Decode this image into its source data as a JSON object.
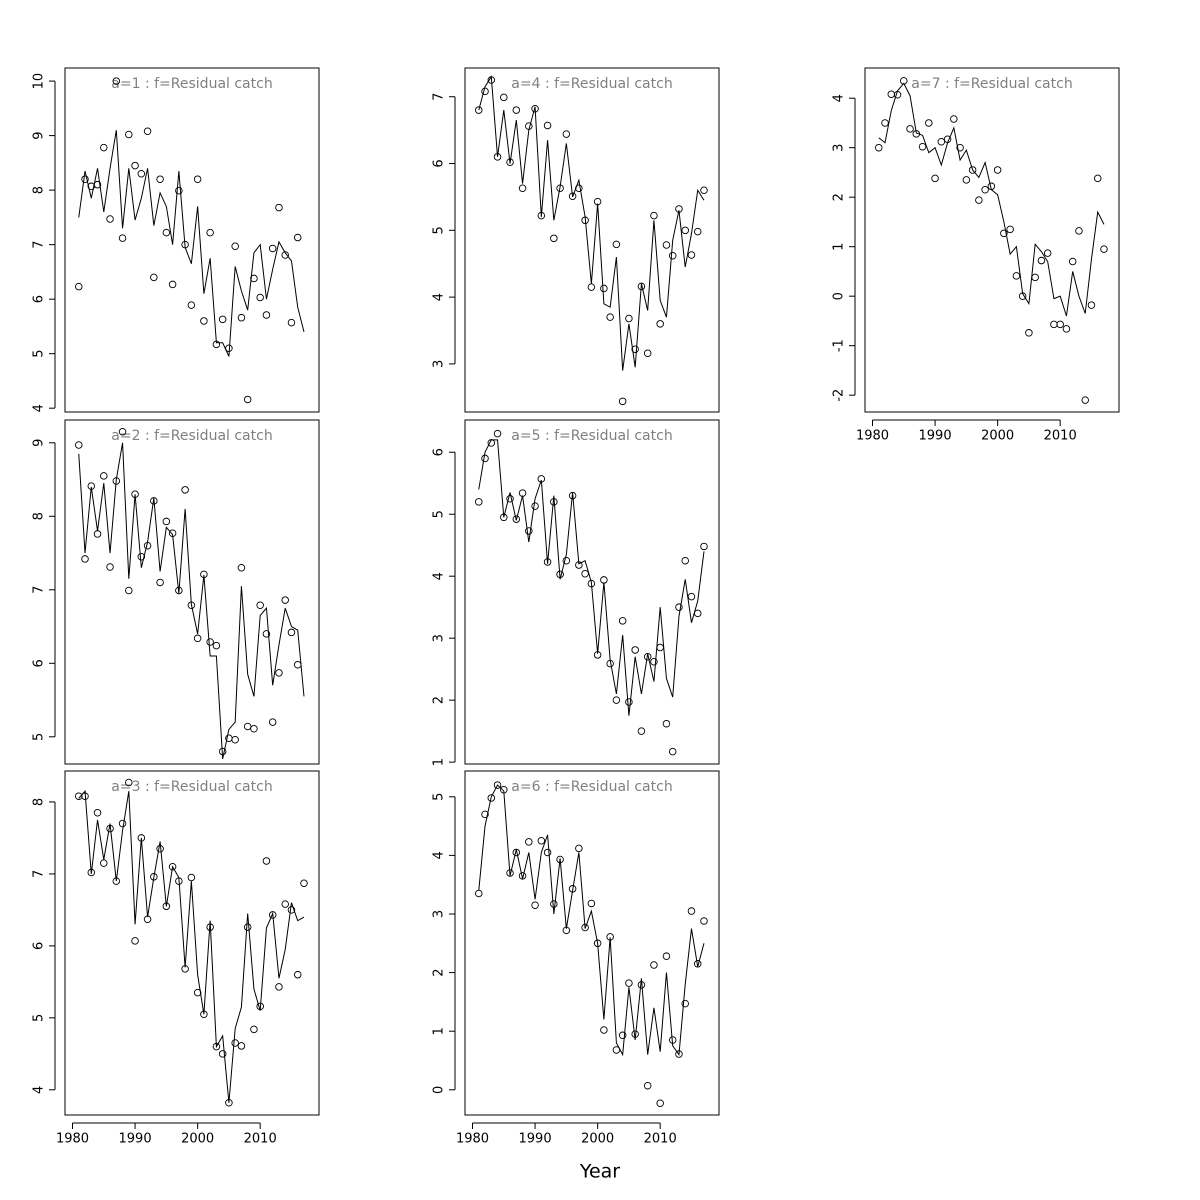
{
  "x_axis_label": "Year",
  "chart_data": [
    {
      "type": "line",
      "title": "a=1  :  f=Residual catch",
      "title_color": "#808080",
      "color": "#000000",
      "x": [
        1981,
        1982,
        1983,
        1984,
        1985,
        1986,
        1987,
        1988,
        1989,
        1990,
        1991,
        1992,
        1993,
        1994,
        1995,
        1996,
        1997,
        1998,
        1999,
        2000,
        2001,
        2002,
        2003,
        2004,
        2005,
        2006,
        2007,
        2008,
        2009,
        2010,
        2011,
        2012,
        2013,
        2014,
        2015,
        2016,
        2017
      ],
      "series": [
        {
          "style": "points",
          "values": [
            6.23,
            8.2,
            8.07,
            8.1,
            8.78,
            7.47,
            10.0,
            7.12,
            9.02,
            8.45,
            8.3,
            9.08,
            6.4,
            8.2,
            7.22,
            6.27,
            7.99,
            7.0,
            5.89,
            8.2,
            5.6,
            7.22,
            5.17,
            5.63,
            5.1,
            6.97,
            5.66,
            4.16,
            6.38,
            6.03,
            5.71,
            6.93,
            7.68,
            6.81,
            5.57,
            7.13,
            null
          ]
        },
        {
          "style": "line",
          "values": [
            7.5,
            8.35,
            7.85,
            8.4,
            7.6,
            8.4,
            9.1,
            7.3,
            8.4,
            7.45,
            7.85,
            8.4,
            7.35,
            7.95,
            7.7,
            7.0,
            8.35,
            6.95,
            6.65,
            7.7,
            6.1,
            6.75,
            5.2,
            5.2,
            4.95,
            6.6,
            6.15,
            5.8,
            6.85,
            7.0,
            6.0,
            6.55,
            7.05,
            6.85,
            6.7,
            5.85,
            5.4
          ]
        }
      ],
      "xlim": [
        1978.8,
        2019.4
      ],
      "ylim": [
        3.93,
        10.24
      ],
      "yticks": [
        4,
        5,
        6,
        7,
        8,
        9,
        10
      ]
    },
    {
      "type": "line",
      "title": "a=2  :  f=Residual catch",
      "title_color": "#808080",
      "color": "#000000",
      "x": [
        1981,
        1982,
        1983,
        1984,
        1985,
        1986,
        1987,
        1988,
        1989,
        1990,
        1991,
        1992,
        1993,
        1994,
        1995,
        1996,
        1997,
        1998,
        1999,
        2000,
        2001,
        2002,
        2003,
        2004,
        2005,
        2006,
        2007,
        2008,
        2009,
        2010,
        2011,
        2012,
        2013,
        2014,
        2015,
        2016,
        2017
      ],
      "series": [
        {
          "style": "points",
          "values": [
            8.97,
            7.42,
            8.41,
            7.76,
            8.55,
            7.31,
            8.48,
            9.15,
            6.99,
            8.3,
            7.45,
            7.6,
            8.21,
            7.1,
            7.93,
            7.77,
            6.99,
            8.36,
            6.79,
            6.34,
            7.21,
            6.29,
            6.24,
            4.8,
            4.98,
            4.96,
            7.3,
            5.14,
            5.11,
            6.79,
            6.4,
            5.2,
            5.87,
            6.86,
            6.42,
            5.98,
            null
          ]
        },
        {
          "style": "line",
          "values": [
            8.85,
            7.5,
            8.4,
            7.8,
            8.45,
            7.5,
            8.5,
            9.0,
            7.15,
            8.3,
            7.3,
            7.65,
            8.25,
            7.25,
            7.85,
            7.75,
            6.95,
            8.1,
            6.8,
            6.4,
            7.2,
            6.1,
            6.1,
            4.7,
            5.1,
            5.2,
            7.05,
            5.85,
            5.55,
            6.65,
            6.75,
            5.7,
            6.25,
            6.75,
            6.5,
            6.45,
            5.55
          ]
        }
      ],
      "xlim": [
        1978.8,
        2019.4
      ],
      "ylim": [
        4.63,
        9.31
      ],
      "yticks": [
        5,
        6,
        7,
        8,
        9
      ]
    },
    {
      "type": "line",
      "title": "a=3  :  f=Residual catch",
      "title_color": "#808080",
      "color": "#000000",
      "x": [
        1981,
        1982,
        1983,
        1984,
        1985,
        1986,
        1987,
        1988,
        1989,
        1990,
        1991,
        1992,
        1993,
        1994,
        1995,
        1996,
        1997,
        1998,
        1999,
        2000,
        2001,
        2002,
        2003,
        2004,
        2005,
        2006,
        2007,
        2008,
        2009,
        2010,
        2011,
        2012,
        2013,
        2014,
        2015,
        2016,
        2017
      ],
      "series": [
        {
          "style": "points",
          "values": [
            8.08,
            8.08,
            7.02,
            7.85,
            7.15,
            7.63,
            6.9,
            7.7,
            8.27,
            6.07,
            7.5,
            6.37,
            6.96,
            7.35,
            6.55,
            7.1,
            6.9,
            5.68,
            6.95,
            5.35,
            5.05,
            6.26,
            4.6,
            4.5,
            3.82,
            4.65,
            4.61,
            6.26,
            4.84,
            5.16,
            7.18,
            6.43,
            5.43,
            6.58,
            6.5,
            5.6,
            6.87
          ]
        },
        {
          "style": "line",
          "values": [
            8.05,
            8.15,
            7.0,
            7.75,
            7.2,
            7.7,
            6.9,
            7.6,
            8.15,
            6.3,
            7.5,
            6.4,
            6.95,
            7.45,
            6.55,
            7.1,
            6.95,
            5.7,
            6.9,
            5.6,
            5.05,
            6.35,
            4.6,
            4.75,
            3.82,
            4.85,
            5.15,
            6.45,
            5.4,
            5.1,
            6.25,
            6.45,
            5.55,
            5.95,
            6.6,
            6.35,
            6.4
          ]
        }
      ],
      "xlim": [
        1978.8,
        2019.4
      ],
      "ylim": [
        3.65,
        8.43
      ],
      "yticks": [
        4,
        5,
        6,
        7,
        8
      ],
      "xticks": [
        1980,
        1990,
        2000,
        2010
      ]
    },
    {
      "type": "line",
      "title": "a=4  :  f=Residual catch",
      "title_color": "#808080",
      "color": "#000000",
      "x": [
        1981,
        1982,
        1983,
        1984,
        1985,
        1986,
        1987,
        1988,
        1989,
        1990,
        1991,
        1992,
        1993,
        1994,
        1995,
        1996,
        1997,
        1998,
        1999,
        2000,
        2001,
        2002,
        2003,
        2004,
        2005,
        2006,
        2007,
        2008,
        2009,
        2010,
        2011,
        2012,
        2013,
        2014,
        2015,
        2016,
        2017
      ],
      "series": [
        {
          "style": "points",
          "values": [
            6.8,
            7.08,
            7.25,
            6.1,
            6.99,
            6.02,
            6.8,
            5.63,
            6.56,
            6.82,
            5.22,
            6.57,
            4.88,
            5.63,
            6.44,
            5.51,
            5.63,
            5.15,
            4.15,
            5.43,
            4.13,
            3.7,
            4.79,
            2.44,
            3.68,
            3.22,
            4.16,
            3.16,
            5.22,
            3.6,
            4.78,
            4.62,
            5.32,
            5.0,
            4.63,
            4.98,
            5.6
          ]
        },
        {
          "style": "line",
          "values": [
            6.8,
            7.15,
            7.3,
            6.1,
            6.8,
            6.0,
            6.65,
            5.7,
            6.5,
            6.85,
            5.2,
            6.35,
            5.15,
            5.65,
            6.3,
            5.5,
            5.75,
            5.2,
            4.2,
            5.4,
            3.9,
            3.85,
            4.6,
            2.9,
            3.6,
            2.95,
            4.2,
            3.8,
            5.15,
            3.95,
            3.7,
            4.85,
            5.3,
            4.45,
            4.95,
            5.6,
            5.45
          ]
        }
      ],
      "xlim": [
        1978.8,
        2019.4
      ],
      "ylim": [
        2.28,
        7.43
      ],
      "yticks": [
        3,
        4,
        5,
        6,
        7
      ]
    },
    {
      "type": "line",
      "title": "a=5  :  f=Residual catch",
      "title_color": "#808080",
      "color": "#000000",
      "x": [
        1981,
        1982,
        1983,
        1984,
        1985,
        1986,
        1987,
        1988,
        1989,
        1990,
        1991,
        1992,
        1993,
        1994,
        1995,
        1996,
        1997,
        1998,
        1999,
        2000,
        2001,
        2002,
        2003,
        2004,
        2005,
        2006,
        2007,
        2008,
        2009,
        2010,
        2011,
        2012,
        2013,
        2014,
        2015,
        2016,
        2017
      ],
      "series": [
        {
          "style": "points",
          "values": [
            5.2,
            5.9,
            6.15,
            6.3,
            4.95,
            5.25,
            4.92,
            5.34,
            4.73,
            5.13,
            5.57,
            4.23,
            5.2,
            4.03,
            4.25,
            5.3,
            4.18,
            4.04,
            3.88,
            2.73,
            3.94,
            2.59,
            2.0,
            3.28,
            1.97,
            2.81,
            1.5,
            2.7,
            2.62,
            2.85,
            1.62,
            1.17,
            3.5,
            4.25,
            3.67,
            3.4,
            4.48
          ]
        },
        {
          "style": "line",
          "values": [
            5.4,
            6.0,
            6.2,
            6.2,
            4.95,
            5.35,
            4.9,
            5.3,
            4.55,
            5.25,
            5.55,
            4.2,
            5.3,
            3.95,
            4.35,
            5.35,
            4.2,
            4.25,
            3.9,
            2.75,
            3.9,
            2.65,
            2.1,
            3.05,
            1.75,
            2.7,
            2.1,
            2.75,
            2.3,
            3.5,
            2.35,
            2.05,
            3.35,
            3.95,
            3.25,
            3.6,
            4.4
          ]
        }
      ],
      "xlim": [
        1978.8,
        2019.4
      ],
      "ylim": [
        0.97,
        6.52
      ],
      "yticks": [
        1,
        2,
        3,
        4,
        5,
        6
      ]
    },
    {
      "type": "line",
      "title": "a=6  :  f=Residual catch",
      "title_color": "#808080",
      "color": "#000000",
      "x": [
        1981,
        1982,
        1983,
        1984,
        1985,
        1986,
        1987,
        1988,
        1989,
        1990,
        1991,
        1992,
        1993,
        1994,
        1995,
        1996,
        1997,
        1998,
        1999,
        2000,
        2001,
        2002,
        2003,
        2004,
        2005,
        2006,
        2007,
        2008,
        2009,
        2010,
        2011,
        2012,
        2013,
        2014,
        2015,
        2016,
        2017
      ],
      "series": [
        {
          "style": "points",
          "values": [
            3.35,
            4.7,
            4.98,
            5.2,
            5.12,
            3.7,
            4.05,
            3.65,
            4.23,
            3.15,
            4.25,
            4.05,
            3.17,
            3.93,
            2.72,
            3.43,
            4.12,
            2.77,
            3.18,
            2.5,
            1.02,
            2.61,
            0.68,
            0.93,
            1.82,
            0.95,
            1.79,
            0.07,
            2.13,
            -0.23,
            2.28,
            0.85,
            0.61,
            1.47,
            3.05,
            2.15,
            2.88
          ]
        },
        {
          "style": "line",
          "values": [
            3.4,
            4.5,
            5.0,
            5.2,
            5.1,
            3.65,
            4.1,
            3.6,
            4.05,
            3.25,
            4.05,
            4.35,
            3.0,
            3.95,
            2.75,
            3.4,
            4.05,
            2.75,
            3.05,
            2.5,
            1.2,
            2.6,
            0.8,
            0.6,
            1.75,
            0.85,
            1.9,
            0.6,
            1.4,
            0.65,
            2.0,
            0.75,
            0.6,
            1.8,
            2.75,
            2.1,
            2.5
          ]
        }
      ],
      "xlim": [
        1978.8,
        2019.4
      ],
      "ylim": [
        -0.43,
        5.44
      ],
      "yticks": [
        0,
        1,
        2,
        3,
        4,
        5
      ],
      "xticks": [
        1980,
        1990,
        2000,
        2010
      ]
    },
    {
      "type": "line",
      "title": "a=7  :  f=Residual catch",
      "title_color": "#808080",
      "color": "#000000",
      "x": [
        1981,
        1982,
        1983,
        1984,
        1985,
        1986,
        1987,
        1988,
        1989,
        1990,
        1991,
        1992,
        1993,
        1994,
        1995,
        1996,
        1997,
        1998,
        1999,
        2000,
        2001,
        2002,
        2003,
        2004,
        2005,
        2006,
        2007,
        2008,
        2009,
        2010,
        2011,
        2012,
        2013,
        2014,
        2015,
        2016,
        2017
      ],
      "series": [
        {
          "style": "points",
          "values": [
            3.0,
            3.5,
            4.08,
            4.07,
            4.35,
            3.38,
            3.28,
            3.02,
            3.5,
            2.38,
            3.12,
            3.17,
            3.58,
            3.0,
            2.35,
            2.55,
            1.94,
            2.15,
            2.22,
            2.55,
            1.27,
            1.35,
            0.41,
            0.0,
            -0.74,
            0.38,
            0.72,
            0.87,
            -0.57,
            -0.57,
            -0.66,
            0.7,
            1.32,
            -2.1,
            -0.18,
            2.38,
            0.95
          ]
        },
        {
          "style": "line",
          "values": [
            3.2,
            3.1,
            3.75,
            4.15,
            4.3,
            4.05,
            3.3,
            3.25,
            2.9,
            3.0,
            2.65,
            3.1,
            3.4,
            2.75,
            2.95,
            2.55,
            2.4,
            2.7,
            2.15,
            2.05,
            1.5,
            0.85,
            1.0,
            0.05,
            -0.15,
            1.05,
            0.9,
            0.7,
            -0.05,
            0.0,
            -0.4,
            0.5,
            0.0,
            -0.35,
            0.75,
            1.7,
            1.45
          ]
        }
      ],
      "xlim": [
        1978.8,
        2019.4
      ],
      "ylim": [
        -2.34,
        4.61
      ],
      "yticks": [
        -2,
        -1,
        0,
        1,
        2,
        3,
        4
      ],
      "xticks": [
        1980,
        1990,
        2000,
        2010
      ]
    }
  ]
}
